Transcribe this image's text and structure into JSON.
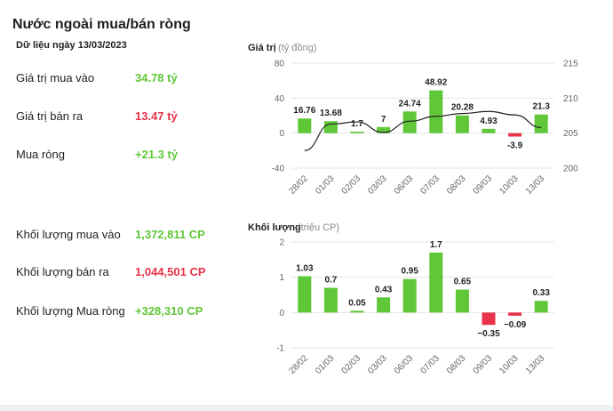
{
  "header": {
    "title": "Nước ngoài mua/bán ròng",
    "date": "Dữ liệu ngày 13/03/2023"
  },
  "summary": [
    {
      "label": "Giá trị mua vào",
      "value": "34.78 tỷ",
      "color": "#5fc738"
    },
    {
      "label": "Giá trị bán ra",
      "value": "13.47 tỷ",
      "color": "#e8334a"
    },
    {
      "label": "Mua ròng",
      "value": "+21.3 tỷ",
      "color": "#5fc738"
    },
    {
      "label": "Khối lượng mua vào",
      "value": "1,372,811 CP",
      "color": "#5fc738"
    },
    {
      "label": "Khối lượng bán ra",
      "value": "1,044,501 CP",
      "color": "#e8334a"
    },
    {
      "label": "Khối lượng Mua ròng",
      "value": "+328,310 CP",
      "color": "#5fc738"
    }
  ],
  "colors": {
    "positive": "#5fc738",
    "negative": "#e8334a",
    "line": "#222222",
    "grid": "#e6e6e6"
  },
  "chart_data": [
    {
      "type": "bar",
      "title": "Giá trị",
      "unit": "(tỷ đồng)",
      "categories": [
        "28/02",
        "01/03",
        "02/03",
        "03/03",
        "06/03",
        "07/03",
        "08/03",
        "09/03",
        "10/03",
        "13/03"
      ],
      "values": [
        16.76,
        13.68,
        1.7,
        7,
        24.74,
        48.92,
        20.28,
        4.93,
        -3.9,
        21.3
      ],
      "labels": [
        "16.76",
        "13.68",
        "1.7",
        "7",
        "24.74",
        "48.92",
        "20.28",
        "4.93",
        "-3.9",
        "21.3"
      ],
      "ylim": [
        -40,
        80
      ],
      "yticks": [
        -40,
        0,
        40,
        80
      ],
      "y2lim": [
        200,
        215
      ],
      "y2ticks": [
        200,
        205,
        210,
        215
      ],
      "line_values": [
        202.5,
        206.3,
        206.6,
        205.1,
        206.7,
        207.4,
        207.8,
        208.1,
        207.6,
        205.8
      ],
      "grid": true
    },
    {
      "type": "bar",
      "title": "Khối lượng",
      "unit": "(triệu CP)",
      "categories": [
        "28/02",
        "01/03",
        "02/03",
        "03/03",
        "06/03",
        "07/03",
        "08/03",
        "09/03",
        "10/03",
        "13/03"
      ],
      "values": [
        1.03,
        0.7,
        0.05,
        0.43,
        0.95,
        1.7,
        0.65,
        -0.35,
        -0.09,
        0.33
      ],
      "labels": [
        "1.03",
        "0.7",
        "0.05",
        "0.43",
        "0.95",
        "1.7",
        "0.65",
        "−0.35",
        "−0.09",
        "0.33"
      ],
      "ylim": [
        -1,
        2
      ],
      "yticks": [
        -1,
        0,
        1,
        2
      ],
      "grid": true
    }
  ]
}
